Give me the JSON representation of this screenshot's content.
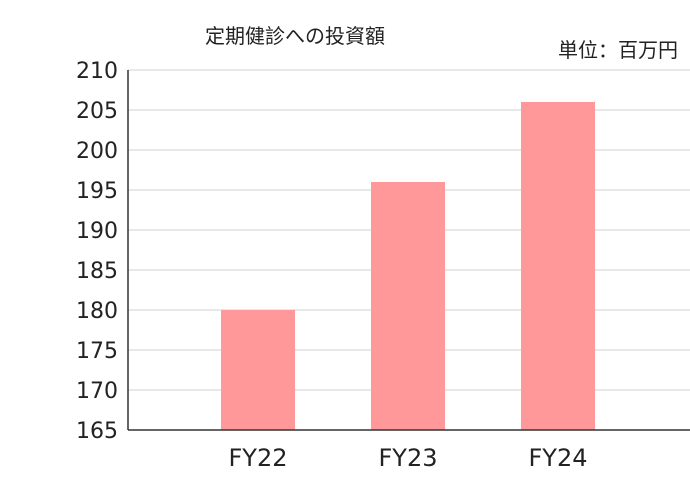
{
  "chart_data": {
    "type": "bar",
    "title": "定期健診への投資額",
    "unit": "単位：百万円",
    "categories": [
      "FY22",
      "FY23",
      "FY24"
    ],
    "values": [
      180,
      196,
      206
    ],
    "ylim": [
      165,
      210
    ],
    "yticks": [
      165,
      170,
      175,
      180,
      185,
      190,
      195,
      200,
      205,
      210
    ],
    "grid": true,
    "bar_color": "#ff9999",
    "grid_color": "#d0d0d0",
    "axis_color": "#333333"
  }
}
